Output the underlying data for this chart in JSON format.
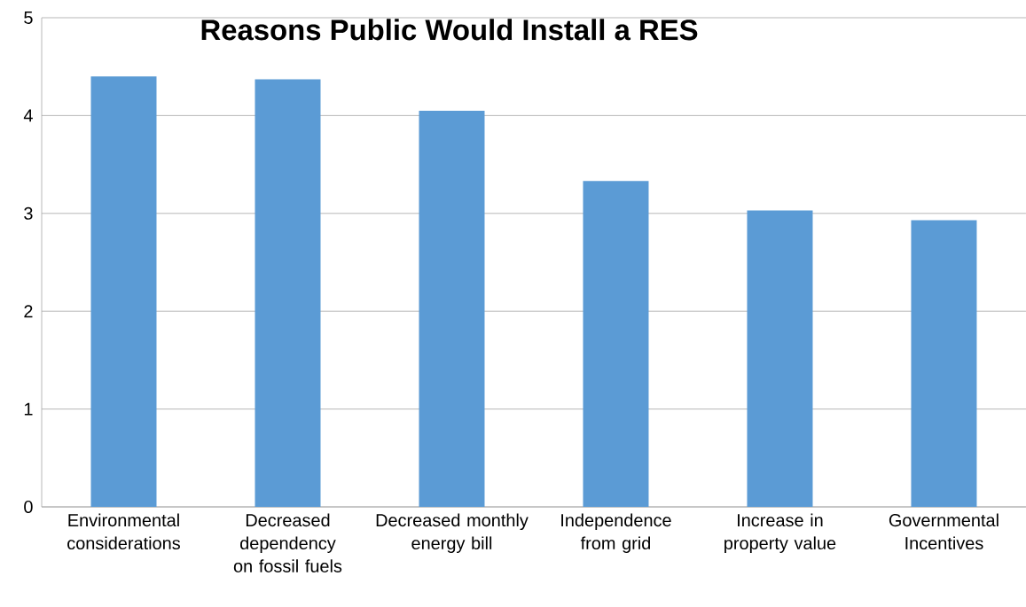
{
  "chart_data": {
    "type": "bar",
    "title": "Reasons Public Would Install a RES",
    "categories": [
      "Environmental considerations",
      "Decreased dependency on fossil fuels",
      "Decreased monthly energy bill",
      "Independence from grid",
      "Increase in property value",
      "Governmental Incentives"
    ],
    "values": [
      4.4,
      4.37,
      4.05,
      3.33,
      3.03,
      2.93
    ],
    "color": "#5b9bd5",
    "ylim": [
      0,
      5
    ],
    "yticks": [
      0,
      1,
      2,
      3,
      4,
      5
    ],
    "grid": "y"
  }
}
